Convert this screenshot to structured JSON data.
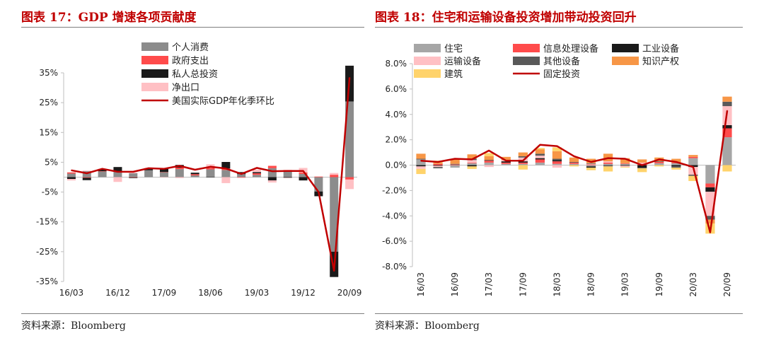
{
  "panels": [
    {
      "title": "图表 17：GDP 增速各项贡献度",
      "source": "资料来源：Bloomberg"
    },
    {
      "title": "图表 18：住宅和运输设备投资增加带动投资回升",
      "source": "资料来源：Bloomberg"
    }
  ],
  "chart_data": [
    {
      "type": "bar",
      "stacked": true,
      "x_tick_labels": [
        "16/03",
        "16/12",
        "17/09",
        "18/06",
        "19/03",
        "19/12",
        "20/09"
      ],
      "categories": [
        "16/03",
        "16/06",
        "16/09",
        "16/12",
        "17/03",
        "17/06",
        "17/09",
        "17/12",
        "18/03",
        "18/06",
        "18/09",
        "18/12",
        "19/03",
        "19/06",
        "19/09",
        "19/12",
        "20/03",
        "20/06",
        "20/09"
      ],
      "ylim": [
        -35,
        35
      ],
      "y_ticks": [
        "35%",
        "25%",
        "15%",
        "5%",
        "-5%",
        "-15%",
        "-25%",
        "-35%"
      ],
      "legend_position": "top",
      "series": [
        {
          "name": "个人消费",
          "color": "#8c8c8c",
          "type": "bar",
          "values": [
            1.2,
            2.0,
            1.9,
            2.0,
            1.3,
            2.3,
            1.6,
            2.7,
            0.6,
            2.6,
            2.4,
            1.0,
            0.8,
            3.0,
            2.1,
            1.1,
            -4.8,
            -25.0,
            25.4
          ]
        },
        {
          "name": "政府支出",
          "color": "#ff4b4b",
          "type": "bar",
          "values": [
            0.4,
            -0.2,
            0.1,
            0.0,
            -0.1,
            0.0,
            0.1,
            0.5,
            0.4,
            0.5,
            0.5,
            -0.1,
            0.5,
            0.8,
            0.3,
            0.5,
            0.2,
            0.8,
            -0.8
          ]
        },
        {
          "name": "私人总投资",
          "color": "#1a1a1a",
          "type": "bar",
          "values": [
            -0.6,
            -0.8,
            0.5,
            1.4,
            -0.2,
            0.6,
            1.2,
            0.9,
            0.5,
            -0.1,
            2.2,
            0.7,
            0.4,
            -1.1,
            -0.2,
            -1.1,
            -1.6,
            -8.5,
            12.0
          ]
        },
        {
          "name": "净出口",
          "color": "#ffc0c4",
          "type": "bar",
          "values": [
            -0.5,
            0.2,
            0.3,
            -1.6,
            0.2,
            0.2,
            -0.1,
            -0.3,
            0.0,
            1.2,
            -2.0,
            -0.2,
            0.8,
            -0.7,
            -0.1,
            1.5,
            0.0,
            0.6,
            -3.2
          ]
        },
        {
          "name": "美国实际GDP年化季环比",
          "color": "#c00000",
          "type": "line",
          "values": [
            2.3,
            1.3,
            2.8,
            1.8,
            1.8,
            3.0,
            2.8,
            3.8,
            2.5,
            3.5,
            2.9,
            1.1,
            3.1,
            2.0,
            2.1,
            2.1,
            -5.0,
            -31.4,
            33.4
          ]
        }
      ]
    },
    {
      "type": "bar",
      "stacked": true,
      "x_tick_labels": [
        "16/03",
        "16/09",
        "17/03",
        "17/09",
        "18/03",
        "18/09",
        "19/03",
        "19/09",
        "20/03",
        "20/09"
      ],
      "categories": [
        "16/03",
        "16/06",
        "16/09",
        "16/12",
        "17/03",
        "17/06",
        "17/09",
        "17/12",
        "18/03",
        "18/06",
        "18/09",
        "18/12",
        "19/03",
        "19/06",
        "19/09",
        "19/12",
        "20/03",
        "20/06",
        "20/09"
      ],
      "ylim": [
        -8,
        8
      ],
      "y_ticks": [
        "8.0%",
        "6.0%",
        "4.0%",
        "2.0%",
        "0.0%",
        "-2.0%",
        "-4.0%",
        "-6.0%",
        "-8.0%"
      ],
      "legend_position": "top",
      "series": [
        {
          "name": "住宅",
          "color": "#a6a6a6",
          "type": "bar",
          "values": [
            0.45,
            0.0,
            -0.2,
            0.15,
            0.2,
            0.1,
            0.1,
            0.2,
            0.1,
            0.1,
            -0.1,
            0.1,
            0.1,
            0.0,
            0.15,
            0.15,
            0.55,
            -1.45,
            2.2
          ]
        },
        {
          "name": "信息处理设备",
          "color": "#ff4b4b",
          "type": "bar",
          "values": [
            0.0,
            0.1,
            0.05,
            0.05,
            0.15,
            0.1,
            0.1,
            0.25,
            0.2,
            0.1,
            0.05,
            0.1,
            0.05,
            0.1,
            0.1,
            0.05,
            0.1,
            -0.3,
            0.7
          ]
        },
        {
          "name": "工业设备",
          "color": "#1a1a1a",
          "type": "bar",
          "values": [
            -0.1,
            -0.05,
            0.0,
            -0.1,
            0.05,
            0.1,
            0.1,
            0.1,
            0.1,
            0.0,
            -0.1,
            0.0,
            -0.05,
            -0.2,
            0.0,
            -0.1,
            -0.15,
            -0.35,
            0.25
          ]
        },
        {
          "name": "运输设备",
          "color": "#ffc0c4",
          "type": "bar",
          "values": [
            -0.2,
            -0.1,
            0.0,
            0.2,
            -0.15,
            0.1,
            0.3,
            0.2,
            -0.2,
            0.0,
            0.05,
            0.1,
            -0.1,
            0.1,
            0.0,
            0.0,
            -0.6,
            -1.9,
            1.5
          ]
        },
        {
          "name": "其他设备",
          "color": "#595959",
          "type": "bar",
          "values": [
            0.05,
            -0.1,
            0.05,
            0.1,
            0.0,
            0.0,
            0.1,
            0.15,
            0.1,
            0.05,
            0.05,
            -0.1,
            0.0,
            -0.05,
            0.05,
            -0.1,
            -0.1,
            -0.3,
            0.35
          ]
        },
        {
          "name": "知识产权",
          "color": "#f79646",
          "type": "bar",
          "values": [
            0.4,
            0.1,
            0.4,
            0.35,
            0.3,
            0.25,
            0.3,
            0.35,
            0.6,
            0.35,
            0.35,
            0.6,
            0.4,
            0.25,
            0.3,
            0.3,
            0.15,
            -0.3,
            0.4
          ]
        },
        {
          "name": "建筑",
          "color": "#ffd36b",
          "type": "bar",
          "values": [
            -0.4,
            0.15,
            0.0,
            -0.2,
            0.25,
            0.0,
            -0.35,
            0.1,
            0.3,
            -0.1,
            -0.2,
            -0.4,
            -0.05,
            -0.3,
            -0.1,
            -0.15,
            -0.4,
            -0.8,
            -0.5
          ]
        },
        {
          "name": "固定投资",
          "color": "#c00000",
          "type": "line",
          "values": [
            0.35,
            0.25,
            0.5,
            0.45,
            1.15,
            0.35,
            0.35,
            1.6,
            1.5,
            0.7,
            0.25,
            0.55,
            0.5,
            0.0,
            0.45,
            0.25,
            -0.15,
            -5.3,
            4.3
          ]
        }
      ]
    }
  ]
}
